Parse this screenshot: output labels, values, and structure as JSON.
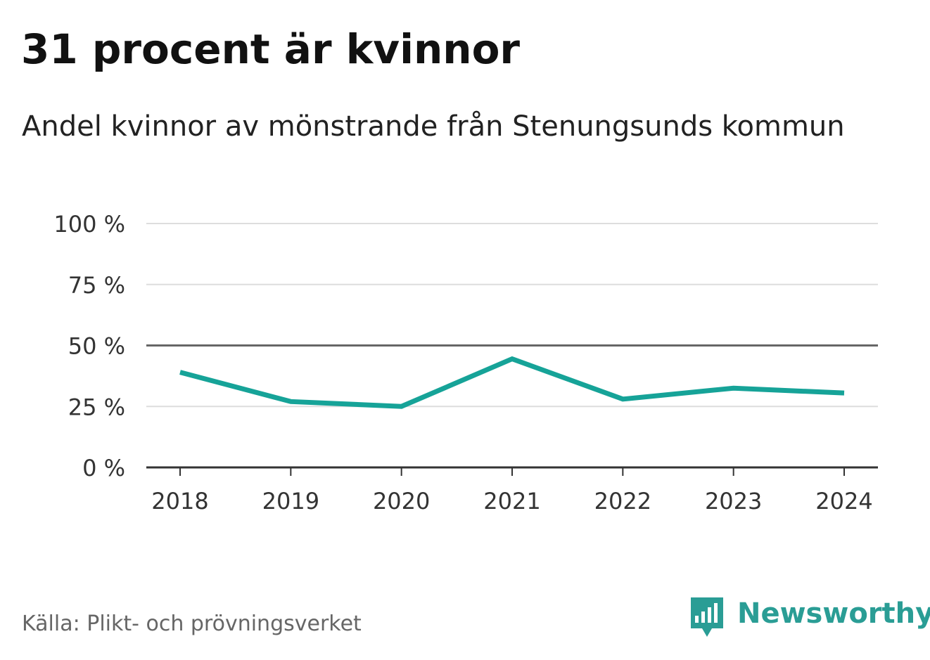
{
  "header": {
    "title": "31 procent är kvinnor",
    "subtitle": "Andel kvinnor av mönstrande från Stenungsunds kommun"
  },
  "footer": {
    "source": "Källa: Plikt- och prövningsverket",
    "brand": "Newsworthy"
  },
  "colors": {
    "line": "#16a398",
    "grid": "#dddddd",
    "reference": "#666666",
    "axis": "#333333",
    "brand": "#2a9d95"
  },
  "chart_data": {
    "type": "line",
    "title": "31 procent är kvinnor",
    "subtitle": "Andel kvinnor av mönstrande från Stenungsunds kommun",
    "xlabel": "",
    "ylabel": "",
    "categories": [
      "2018",
      "2019",
      "2020",
      "2021",
      "2022",
      "2023",
      "2024"
    ],
    "series": [
      {
        "name": "Andel kvinnor",
        "values": [
          39,
          27,
          25,
          44.5,
          28,
          32.5,
          30.5
        ]
      }
    ],
    "ylim": [
      0,
      100
    ],
    "yticks": [
      0,
      25,
      50,
      75,
      100
    ],
    "ytick_labels": [
      "0 %",
      "25 %",
      "50 %",
      "75 %",
      "100 %"
    ],
    "reference_line": 50,
    "grid": true,
    "legend": "none"
  }
}
